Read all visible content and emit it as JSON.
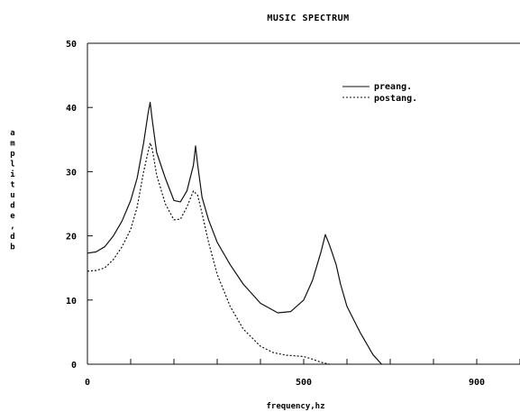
{
  "chart_data": {
    "type": "line",
    "title": "MUSIC SPECTRUM",
    "xlabel": "frequency,hz",
    "ylabel": "amplitude,db",
    "xlim": [
      0,
      1000
    ],
    "ylim": [
      0,
      50
    ],
    "x_ticks": [
      0,
      100,
      200,
      300,
      400,
      500,
      600,
      700,
      800,
      900,
      1000
    ],
    "x_tick_labels": [
      {
        "value": 0,
        "label": "0"
      },
      {
        "value": 500,
        "label": "500"
      },
      {
        "value": 900,
        "label": "900"
      }
    ],
    "y_ticks": [
      0,
      10,
      20,
      30,
      40,
      50
    ],
    "y_tick_labels": [
      {
        "value": 0,
        "label": "0"
      },
      {
        "value": 10,
        "label": "10"
      },
      {
        "value": 20,
        "label": "20"
      },
      {
        "value": 30,
        "label": "30"
      },
      {
        "value": 40,
        "label": "40"
      },
      {
        "value": 50,
        "label": "50"
      }
    ],
    "grid": false,
    "legend": "top-right",
    "series": [
      {
        "name": "preang.",
        "style": "solid",
        "color": "#111111",
        "x": [
          0,
          20,
          40,
          60,
          80,
          100,
          115,
          130,
          140,
          145,
          150,
          160,
          180,
          200,
          215,
          230,
          245,
          250,
          255,
          265,
          280,
          300,
          330,
          360,
          400,
          440,
          470,
          500,
          520,
          540,
          550,
          560,
          575,
          585,
          600,
          630,
          660,
          680
        ],
        "y": [
          17.3,
          17.5,
          18.3,
          20.0,
          22.3,
          25.5,
          29.0,
          34.5,
          39.0,
          40.8,
          38.0,
          33.0,
          29.0,
          25.5,
          25.3,
          27.0,
          31.0,
          34.0,
          31.0,
          26.0,
          22.5,
          19.0,
          15.5,
          12.5,
          9.5,
          8.0,
          8.2,
          10.0,
          13.0,
          17.5,
          20.2,
          18.5,
          15.5,
          12.5,
          9.0,
          5.0,
          1.5,
          0.0
        ]
      },
      {
        "name": "postang.",
        "style": "dotted",
        "color": "#111111",
        "x": [
          0,
          20,
          40,
          60,
          80,
          100,
          115,
          130,
          140,
          145,
          150,
          160,
          180,
          200,
          215,
          230,
          245,
          255,
          265,
          280,
          300,
          330,
          360,
          400,
          430,
          460,
          480,
          500,
          520,
          540,
          560
        ],
        "y": [
          14.5,
          14.6,
          15.0,
          16.3,
          18.3,
          21.0,
          24.5,
          30.0,
          33.0,
          34.5,
          33.5,
          29.5,
          25.0,
          22.5,
          22.6,
          24.5,
          27.0,
          26.3,
          23.5,
          19.0,
          14.0,
          9.0,
          5.5,
          2.8,
          1.8,
          1.4,
          1.3,
          1.2,
          0.8,
          0.3,
          0.0
        ]
      }
    ]
  }
}
